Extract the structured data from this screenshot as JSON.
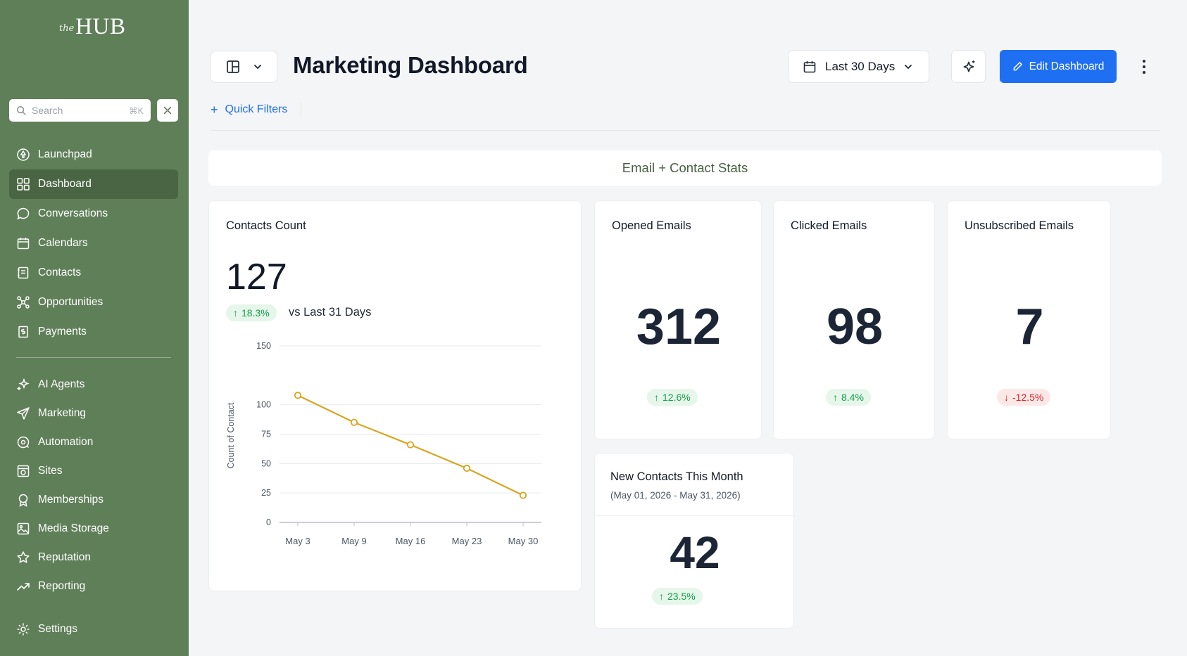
{
  "app": {
    "logo_prefix": "the",
    "logo_name": "HUB"
  },
  "colors": {
    "sidebar": "#5f7f58",
    "sidebar_active": "#4a6543",
    "accent": "#1e6ff2",
    "positive": "#15a04a",
    "negative": "#e02424",
    "chart_line": "#d9a520"
  },
  "sidebar": {
    "search_placeholder": "Search",
    "search_shortcut": "⌘K",
    "nav_primary": [
      {
        "label": "Launchpad",
        "icon": "rocket-icon",
        "active": false
      },
      {
        "label": "Dashboard",
        "icon": "grid-icon",
        "active": true
      },
      {
        "label": "Conversations",
        "icon": "chat-icon",
        "active": false
      },
      {
        "label": "Calendars",
        "icon": "calendar-icon",
        "active": false
      },
      {
        "label": "Contacts",
        "icon": "contact-book-icon",
        "active": false
      },
      {
        "label": "Opportunities",
        "icon": "network-icon",
        "active": false
      },
      {
        "label": "Payments",
        "icon": "receipt-icon",
        "active": false
      }
    ],
    "nav_secondary": [
      {
        "label": "AI Agents",
        "icon": "sparkle-icon"
      },
      {
        "label": "Marketing",
        "icon": "send-icon"
      },
      {
        "label": "Automation",
        "icon": "automation-icon"
      },
      {
        "label": "Sites",
        "icon": "globe-page-icon"
      },
      {
        "label": "Memberships",
        "icon": "badge-icon"
      },
      {
        "label": "Media Storage",
        "icon": "image-icon"
      },
      {
        "label": "Reputation",
        "icon": "star-icon"
      },
      {
        "label": "Reporting",
        "icon": "trend-icon"
      }
    ],
    "settings_label": "Settings"
  },
  "header": {
    "title": "Marketing Dashboard",
    "date_range": "Last 30 Days",
    "edit_button": "Edit Dashboard",
    "quick_filters": "Quick Filters"
  },
  "section": {
    "title": "Email + Contact Stats"
  },
  "contacts_card": {
    "title": "Contacts Count",
    "value": "127",
    "change": "18.3%",
    "compare_label": "vs Last 31 Days"
  },
  "opened_card": {
    "title": "Opened Emails",
    "value": "312",
    "change": "12.6%"
  },
  "clicked_card": {
    "title": "Clicked Emails",
    "value": "98",
    "change": "8.4%"
  },
  "unsubscribed_card": {
    "title": "Unsubscribed Emails",
    "value": "7",
    "change": "-12.5%"
  },
  "new_contacts_card": {
    "title": "New Contacts This Month",
    "subtitle": "(May 01, 2026 - May 31, 2026)",
    "value": "42",
    "change": "23.5%"
  },
  "chart_data": {
    "type": "line",
    "categories": [
      "May 3",
      "May 9",
      "May 16",
      "May 23",
      "May 30"
    ],
    "series": [
      {
        "values": [
          108,
          85,
          66,
          46,
          23
        ]
      }
    ],
    "ylabel": "Count of Contact",
    "xlabel": "",
    "ylim": [
      0,
      150
    ],
    "yticks": [
      0,
      25,
      50,
      75,
      100,
      150
    ],
    "grid": true
  }
}
